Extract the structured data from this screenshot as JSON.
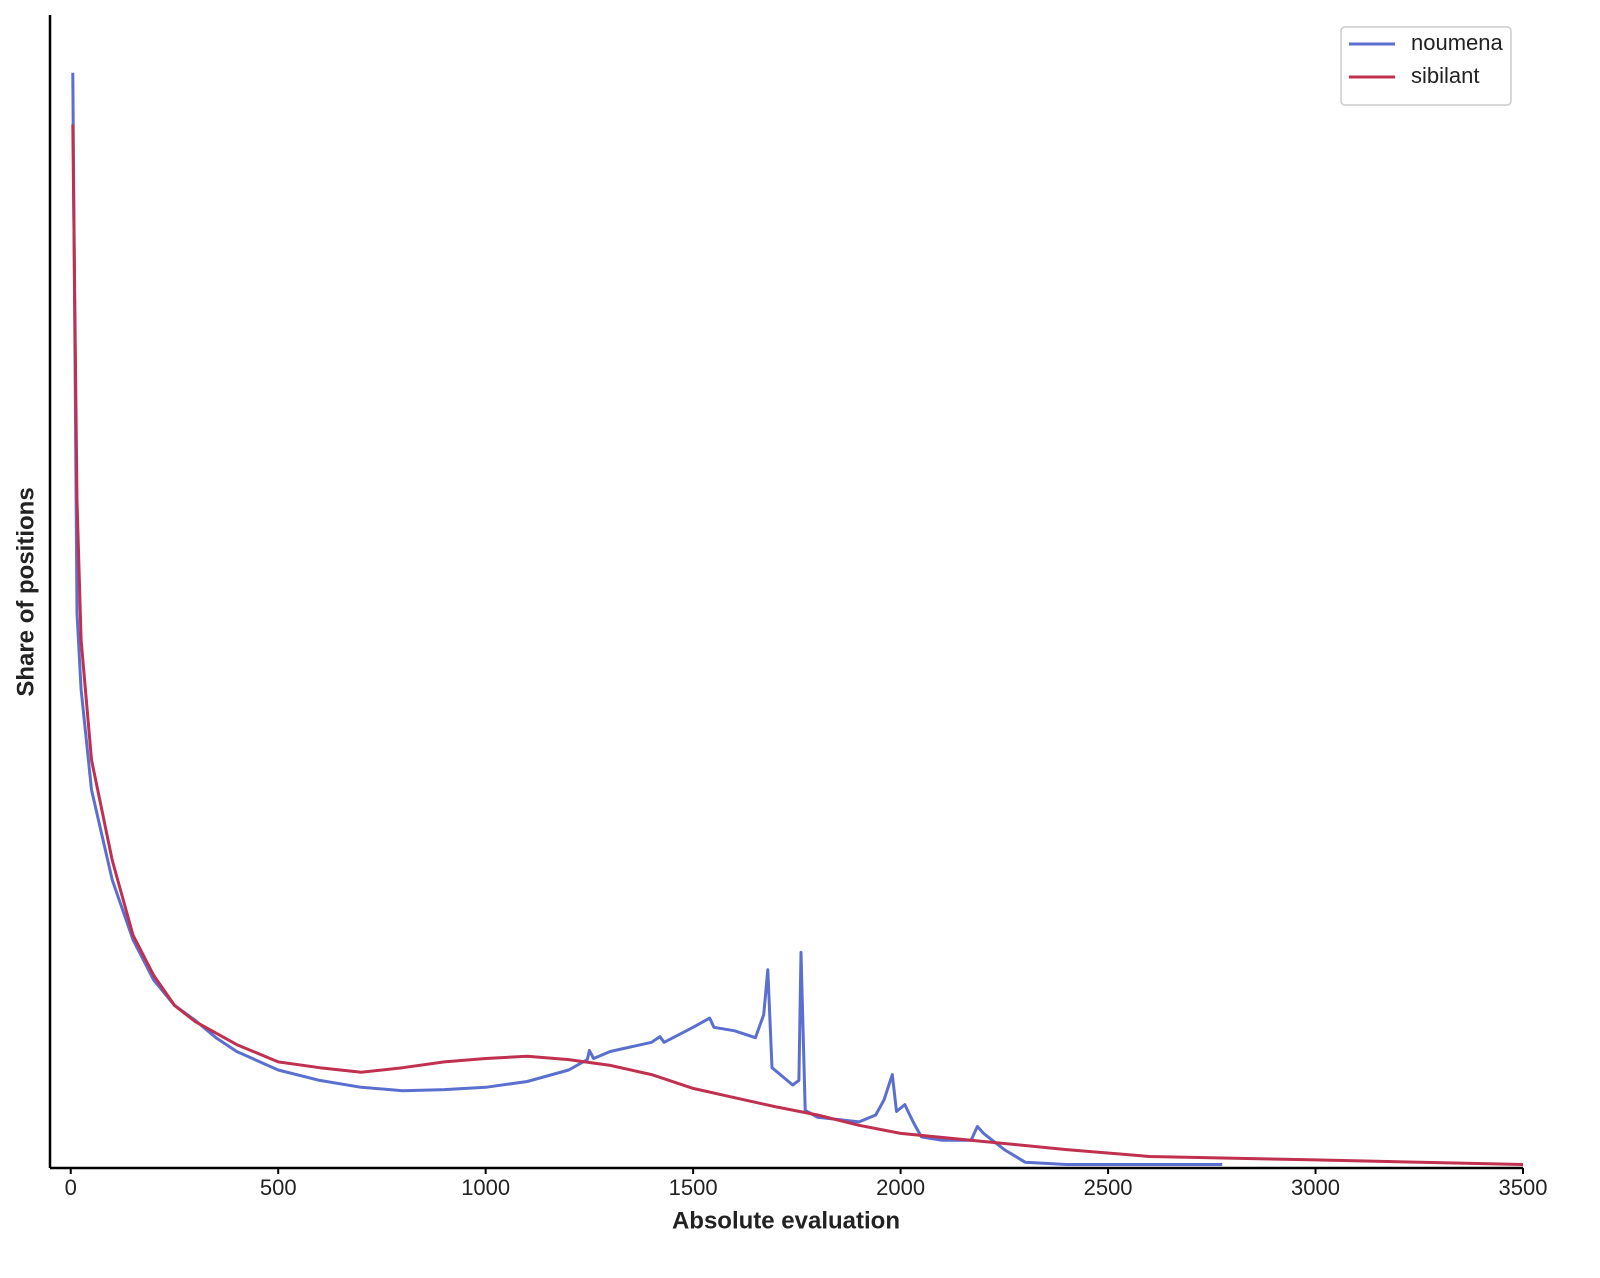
{
  "chart_data": {
    "type": "line",
    "xlabel": "Absolute evaluation",
    "ylabel": "Share of positions",
    "xlim": [
      -50,
      3500
    ],
    "xticks": [
      0,
      500,
      1000,
      1500,
      2000,
      2500,
      3000,
      3500
    ],
    "ylim": [
      0,
      100
    ],
    "legend": "upper right",
    "series": [
      {
        "name": "noumena",
        "color": "#5b6fcf",
        "x": [
          5,
          15,
          25,
          50,
          100,
          150,
          200,
          250,
          300,
          350,
          400,
          500,
          600,
          700,
          800,
          900,
          1000,
          1100,
          1200,
          1245,
          1250,
          1260,
          1300,
          1350,
          1400,
          1420,
          1430,
          1500,
          1540,
          1550,
          1600,
          1650,
          1670,
          1680,
          1690,
          1740,
          1755,
          1760,
          1770,
          1800,
          1900,
          1940,
          1960,
          1980,
          1990,
          2010,
          2030,
          2050,
          2100,
          2170,
          2185,
          2200,
          2250,
          2300,
          2400,
          2775
        ],
        "values": [
          95.0,
          48.1,
          41.5,
          32.8,
          25.0,
          19.8,
          16.3,
          14.1,
          12.8,
          11.3,
          10.1,
          8.5,
          7.6,
          7.0,
          6.7,
          6.8,
          7.0,
          7.5,
          8.5,
          9.4,
          10.2,
          9.5,
          10.1,
          10.5,
          10.9,
          11.4,
          10.9,
          12.2,
          13.0,
          12.2,
          11.9,
          11.3,
          13.3,
          17.2,
          8.7,
          7.2,
          7.6,
          18.7,
          5.0,
          4.4,
          4.0,
          4.6,
          5.9,
          8.1,
          4.9,
          5.5,
          4.0,
          2.7,
          2.4,
          2.4,
          3.6,
          3.0,
          1.6,
          0.5,
          0.3,
          0.3
        ]
      },
      {
        "name": "sibilant",
        "color": "#c0304f",
        "x": [
          5,
          15,
          25,
          50,
          100,
          150,
          200,
          250,
          300,
          400,
          500,
          600,
          700,
          800,
          900,
          1000,
          1100,
          1200,
          1300,
          1400,
          1500,
          1600,
          1700,
          1800,
          1900,
          2000,
          2200,
          2400,
          2600,
          3000,
          3500
        ],
        "values": [
          90.5,
          57.9,
          45.8,
          35.4,
          26.7,
          20.2,
          16.7,
          14.1,
          12.7,
          10.7,
          9.2,
          8.7,
          8.3,
          8.7,
          9.2,
          9.5,
          9.7,
          9.4,
          8.9,
          8.1,
          6.9,
          6.1,
          5.3,
          4.6,
          3.7,
          3.0,
          2.3,
          1.6,
          1.0,
          0.7,
          0.3
        ]
      }
    ]
  }
}
